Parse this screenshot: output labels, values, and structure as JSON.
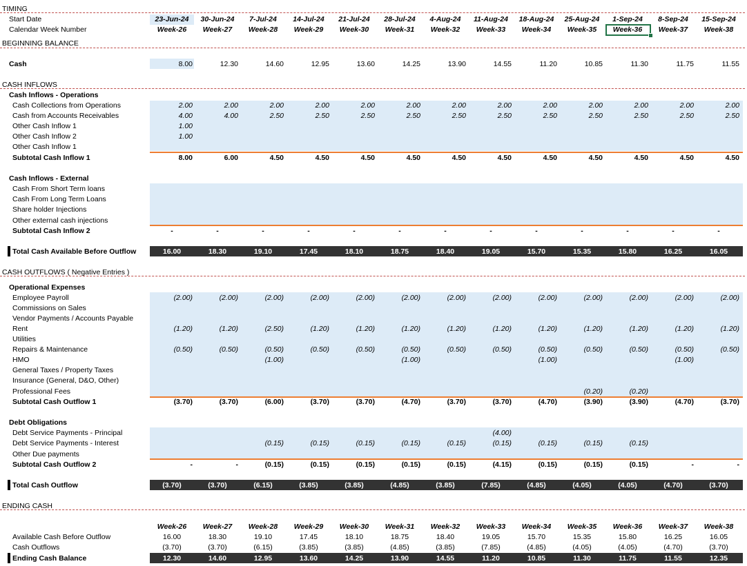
{
  "labels": {
    "timing": "TIMING",
    "start_date": "Start Date",
    "calendar_week": "Calendar Week Number",
    "beginning_balance": "BEGINNING BALANCE",
    "cash": "Cash",
    "cash_inflows": "CASH INFLOWS",
    "inflows_operations": "Cash Inflows - Operations",
    "collections_ops": "Cash Collections from Operations",
    "accounts_receivables": "Cash from Accounts Receivables",
    "other_inflow_1a": "Other Cash Inflow 1",
    "other_inflow_2": "Other Cash Inflow 2",
    "other_inflow_1b": "Other Cash Inflow 1",
    "subtotal_inflow_1": "Subtotal Cash Inflow 1",
    "inflows_external": "Cash Inflows - External",
    "short_term_loans": "Cash From Short Term loans",
    "long_term_loans": "Cash From Long Term Loans",
    "shareholder_injections": "Share holder Injections",
    "other_external": "Other external cash injections",
    "subtotal_inflow_2": "Subtotal Cash Inflow  2",
    "total_available": "Total Cash Available Before Outflow",
    "cash_outflows": "CASH OUTFLOWS ( Negative Entries )",
    "operational_expenses": "Operational Expenses",
    "employee_payroll": "Employee Payroll",
    "commissions": "Commissions on Sales",
    "vendor_payments": "Vendor Payments / Accounts Payable",
    "rent": "Rent",
    "utilities": "Utilities",
    "repairs": "Repairs & Maintenance",
    "hmo": "HMO",
    "general_taxes": "General Taxes / Property Taxes",
    "insurance": "Insurance (General, D&O, Other)",
    "professional_fees": "Professional Fees",
    "subtotal_outflow_1": "Subtotal Cash Outflow 1",
    "debt_obligations": "Debt Obligations",
    "debt_principal": "Debt Service Payments - Principal",
    "debt_interest": "Debt Service Payments - Interest",
    "other_due": "Other Due payments",
    "subtotal_outflow_2": "Subtotal Cash Outflow 2",
    "total_outflow": "Total Cash Outflow",
    "ending_cash": "ENDING CASH",
    "available_before_outflow": "Available Cash Before Outflow",
    "cash_outflows_row": "Cash Outflows",
    "ending_cash_balance": "Ending Cash Balance"
  },
  "dates": [
    "23-Jun-24",
    "30-Jun-24",
    "7-Jul-24",
    "14-Jul-24",
    "21-Jul-24",
    "28-Jul-24",
    "4-Aug-24",
    "11-Aug-24",
    "18-Aug-24",
    "25-Aug-24",
    "1-Sep-24",
    "8-Sep-24",
    "15-Sep-24"
  ],
  "weeks": [
    "Week-26",
    "Week-27",
    "Week-28",
    "Week-29",
    "Week-30",
    "Week-31",
    "Week-32",
    "Week-33",
    "Week-34",
    "Week-35",
    "Week-36",
    "Week-37",
    "Week-38"
  ],
  "cash": [
    "8.00",
    "12.30",
    "14.60",
    "12.95",
    "13.60",
    "14.25",
    "13.90",
    "14.55",
    "11.20",
    "10.85",
    "11.30",
    "11.75",
    "11.55"
  ],
  "collections_ops": [
    "2.00",
    "2.00",
    "2.00",
    "2.00",
    "2.00",
    "2.00",
    "2.00",
    "2.00",
    "2.00",
    "2.00",
    "2.00",
    "2.00",
    "2.00"
  ],
  "accounts_receivables": [
    "4.00",
    "4.00",
    "2.50",
    "2.50",
    "2.50",
    "2.50",
    "2.50",
    "2.50",
    "2.50",
    "2.50",
    "2.50",
    "2.50",
    "2.50"
  ],
  "other_inflow_1a": [
    "1.00",
    "",
    "",
    "",
    "",
    "",
    "",
    "",
    "",
    "",
    "",
    "",
    ""
  ],
  "other_inflow_2": [
    "1.00",
    "",
    "",
    "",
    "",
    "",
    "",
    "",
    "",
    "",
    "",
    "",
    ""
  ],
  "subtotal_inflow_1": [
    "8.00",
    "6.00",
    "4.50",
    "4.50",
    "4.50",
    "4.50",
    "4.50",
    "4.50",
    "4.50",
    "4.50",
    "4.50",
    "4.50",
    "4.50"
  ],
  "subtotal_inflow_2": [
    "-",
    "-",
    "-",
    "-",
    "-",
    "-",
    "-",
    "-",
    "-",
    "-",
    "-",
    "-",
    "-"
  ],
  "total_available": [
    "16.00",
    "18.30",
    "19.10",
    "17.45",
    "18.10",
    "18.75",
    "18.40",
    "19.05",
    "15.70",
    "15.35",
    "15.80",
    "16.25",
    "16.05"
  ],
  "employee_payroll": [
    "(2.00)",
    "(2.00)",
    "(2.00)",
    "(2.00)",
    "(2.00)",
    "(2.00)",
    "(2.00)",
    "(2.00)",
    "(2.00)",
    "(2.00)",
    "(2.00)",
    "(2.00)",
    "(2.00)"
  ],
  "rent": [
    "(1.20)",
    "(1.20)",
    "(2.50)",
    "(1.20)",
    "(1.20)",
    "(1.20)",
    "(1.20)",
    "(1.20)",
    "(1.20)",
    "(1.20)",
    "(1.20)",
    "(1.20)",
    "(1.20)"
  ],
  "repairs": [
    "(0.50)",
    "(0.50)",
    "(0.50)",
    "(0.50)",
    "(0.50)",
    "(0.50)",
    "(0.50)",
    "(0.50)",
    "(0.50)",
    "(0.50)",
    "(0.50)",
    "(0.50)",
    "(0.50)"
  ],
  "hmo": [
    "",
    "",
    "(1.00)",
    "",
    "",
    "(1.00)",
    "",
    "",
    "(1.00)",
    "",
    "",
    "(1.00)",
    ""
  ],
  "professional_fees": [
    "",
    "",
    "",
    "",
    "",
    "",
    "",
    "",
    "",
    "(0.20)",
    "(0.20)",
    "",
    ""
  ],
  "subtotal_outflow_1": [
    "(3.70)",
    "(3.70)",
    "(6.00)",
    "(3.70)",
    "(3.70)",
    "(4.70)",
    "(3.70)",
    "(3.70)",
    "(4.70)",
    "(3.90)",
    "(3.90)",
    "(4.70)",
    "(3.70)"
  ],
  "debt_principal": [
    "",
    "",
    "",
    "",
    "",
    "",
    "",
    "(4.00)",
    "",
    "",
    "",
    "",
    ""
  ],
  "debt_interest": [
    "",
    "",
    "(0.15)",
    "(0.15)",
    "(0.15)",
    "(0.15)",
    "(0.15)",
    "(0.15)",
    "(0.15)",
    "(0.15)",
    "(0.15)",
    "",
    ""
  ],
  "subtotal_outflow_2": [
    "-",
    "-",
    "(0.15)",
    "(0.15)",
    "(0.15)",
    "(0.15)",
    "(0.15)",
    "(4.15)",
    "(0.15)",
    "(0.15)",
    "(0.15)",
    "-",
    "-"
  ],
  "total_outflow": [
    "(3.70)",
    "(3.70)",
    "(6.15)",
    "(3.85)",
    "(3.85)",
    "(4.85)",
    "(3.85)",
    "(7.85)",
    "(4.85)",
    "(4.05)",
    "(4.05)",
    "(4.70)",
    "(3.70)"
  ],
  "end_weeks": [
    "Week-26",
    "Week-27",
    "Week-28",
    "Week-29",
    "Week-30",
    "Week-31",
    "Week-32",
    "Week-33",
    "Week-34",
    "Week-35",
    "Week-36",
    "Week-37",
    "Week-38"
  ],
  "end_available": [
    "16.00",
    "18.30",
    "19.10",
    "17.45",
    "18.10",
    "18.75",
    "18.40",
    "19.05",
    "15.70",
    "15.35",
    "15.80",
    "16.25",
    "16.05"
  ],
  "end_outflows": [
    "(3.70)",
    "(3.70)",
    "(6.15)",
    "(3.85)",
    "(3.85)",
    "(4.85)",
    "(3.85)",
    "(7.85)",
    "(4.85)",
    "(4.05)",
    "(4.05)",
    "(4.70)",
    "(3.70)"
  ],
  "end_balance": [
    "12.30",
    "14.60",
    "12.95",
    "13.60",
    "14.25",
    "13.90",
    "14.55",
    "11.20",
    "10.85",
    "11.30",
    "11.75",
    "11.55",
    "12.35"
  ]
}
